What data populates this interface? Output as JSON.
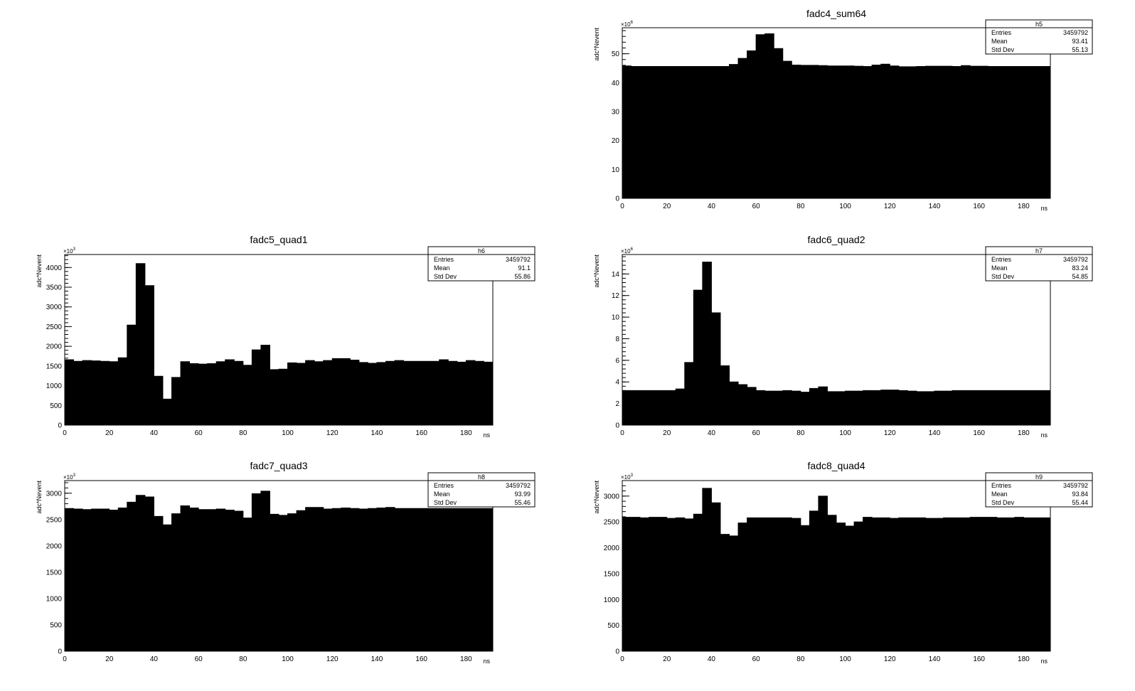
{
  "colors": {
    "fill": "#000000",
    "axis": "#000000",
    "background": "#ffffff"
  },
  "chart_data": [
    {
      "id": "h5",
      "type": "histogram",
      "title": "fadc4_sum64",
      "xlabel": "ns",
      "ylabel": "adc*Nevent",
      "exponent": "6",
      "xlim": [
        0,
        192
      ],
      "ylim": [
        0,
        59
      ],
      "xticks": [
        0,
        20,
        40,
        60,
        80,
        100,
        120,
        140,
        160,
        180
      ],
      "yticks": [
        0,
        10,
        20,
        30,
        40,
        50
      ],
      "bin_width": 4,
      "values": [
        45.8,
        45.6,
        45.6,
        45.6,
        45.6,
        45.6,
        45.6,
        45.6,
        45.6,
        45.6,
        45.6,
        45.6,
        46.3,
        48.4,
        51.0,
        56.6,
        56.9,
        51.8,
        47.4,
        46.1,
        46.0,
        46.0,
        45.9,
        45.8,
        45.8,
        45.8,
        45.7,
        45.6,
        46.1,
        46.4,
        45.8,
        45.5,
        45.5,
        45.6,
        45.7,
        45.7,
        45.7,
        45.6,
        45.9,
        45.7,
        45.7,
        45.6,
        45.6,
        45.6,
        45.6,
        45.6,
        45.6,
        45.6
      ],
      "stats": {
        "name": "h5",
        "rows": [
          {
            "label": "Entries",
            "value": "3459792"
          },
          {
            "label": "Mean",
            "value": "93.41"
          },
          {
            "label": "Std Dev",
            "value": "55.13"
          }
        ]
      }
    },
    {
      "id": "h6",
      "type": "histogram",
      "title": "fadc5_quad1",
      "xlabel": "ns",
      "ylabel": "adc*Nevent",
      "exponent": "3",
      "xlim": [
        0,
        192
      ],
      "ylim": [
        0,
        4330
      ],
      "xticks": [
        0,
        20,
        40,
        60,
        80,
        100,
        120,
        140,
        160,
        180
      ],
      "yticks": [
        0,
        500,
        1000,
        1500,
        2000,
        2500,
        3000,
        3500,
        4000
      ],
      "bin_width": 4,
      "values": [
        1660,
        1620,
        1640,
        1630,
        1620,
        1610,
        1710,
        2540,
        4100,
        3540,
        1240,
        660,
        1210,
        1610,
        1560,
        1550,
        1560,
        1610,
        1660,
        1620,
        1520,
        1910,
        2030,
        1410,
        1420,
        1580,
        1570,
        1640,
        1610,
        1640,
        1690,
        1690,
        1650,
        1590,
        1570,
        1590,
        1620,
        1640,
        1620,
        1620,
        1620,
        1620,
        1660,
        1620,
        1600,
        1640,
        1620,
        1600
      ],
      "stats": {
        "name": "h6",
        "rows": [
          {
            "label": "Entries",
            "value": "3459792"
          },
          {
            "label": "Mean",
            "value": "91.1"
          },
          {
            "label": "Std Dev",
            "value": "55.86"
          }
        ]
      }
    },
    {
      "id": "h7",
      "type": "histogram",
      "title": "fadc6_quad2",
      "xlabel": "ns",
      "ylabel": "adc*Nevent",
      "exponent": "6",
      "xlim": [
        0,
        192
      ],
      "ylim": [
        0,
        15.8
      ],
      "xticks": [
        0,
        20,
        40,
        60,
        80,
        100,
        120,
        140,
        160,
        180
      ],
      "yticks": [
        0,
        2,
        4,
        6,
        8,
        10,
        12,
        14
      ],
      "bin_width": 4,
      "values": [
        3.2,
        3.2,
        3.2,
        3.2,
        3.2,
        3.2,
        3.35,
        5.8,
        12.5,
        15.1,
        10.4,
        5.5,
        4.0,
        3.75,
        3.5,
        3.2,
        3.15,
        3.15,
        3.2,
        3.15,
        3.05,
        3.4,
        3.55,
        3.1,
        3.1,
        3.15,
        3.15,
        3.2,
        3.2,
        3.25,
        3.25,
        3.2,
        3.15,
        3.1,
        3.1,
        3.15,
        3.15,
        3.2,
        3.2,
        3.2,
        3.2,
        3.2,
        3.2,
        3.2,
        3.2,
        3.2,
        3.2,
        3.2
      ],
      "stats": {
        "name": "h7",
        "rows": [
          {
            "label": "Entries",
            "value": "3459792"
          },
          {
            "label": "Mean",
            "value": "83.24"
          },
          {
            "label": "Std Dev",
            "value": "54.85"
          }
        ]
      }
    },
    {
      "id": "h8",
      "type": "histogram",
      "title": "fadc7_quad3",
      "xlabel": "ns",
      "ylabel": "adc*Nevent",
      "exponent": "3",
      "xlim": [
        0,
        192
      ],
      "ylim": [
        0,
        3240
      ],
      "xticks": [
        0,
        20,
        40,
        60,
        80,
        100,
        120,
        140,
        160,
        180
      ],
      "yticks": [
        0,
        500,
        1000,
        1500,
        2000,
        2500,
        3000
      ],
      "bin_width": 4,
      "values": [
        2710,
        2700,
        2690,
        2700,
        2700,
        2680,
        2720,
        2830,
        2960,
        2930,
        2560,
        2400,
        2610,
        2760,
        2720,
        2690,
        2690,
        2700,
        2680,
        2660,
        2530,
        2990,
        3040,
        2600,
        2580,
        2610,
        2670,
        2730,
        2730,
        2700,
        2710,
        2720,
        2710,
        2700,
        2710,
        2720,
        2730,
        2710,
        2710,
        2710,
        2710,
        2710,
        2710,
        2710,
        2710,
        2710,
        2710,
        2710
      ],
      "stats": {
        "name": "h8",
        "rows": [
          {
            "label": "Entries",
            "value": "3459792"
          },
          {
            "label": "Mean",
            "value": "93.99"
          },
          {
            "label": "Std Dev",
            "value": "55.46"
          }
        ]
      }
    },
    {
      "id": "h9",
      "type": "histogram",
      "title": "fadc8_quad4",
      "xlabel": "ns",
      "ylabel": "adc*Nevent",
      "exponent": "3",
      "xlim": [
        0,
        192
      ],
      "ylim": [
        0,
        3300
      ],
      "xticks": [
        0,
        20,
        40,
        60,
        80,
        100,
        120,
        140,
        160,
        180
      ],
      "yticks": [
        0,
        500,
        1000,
        1500,
        2000,
        2500,
        3000
      ],
      "bin_width": 4,
      "values": [
        2590,
        2590,
        2580,
        2590,
        2590,
        2570,
        2580,
        2560,
        2650,
        3150,
        2870,
        2260,
        2230,
        2480,
        2580,
        2580,
        2580,
        2580,
        2580,
        2570,
        2430,
        2710,
        3000,
        2630,
        2480,
        2420,
        2500,
        2590,
        2580,
        2580,
        2570,
        2580,
        2580,
        2580,
        2570,
        2570,
        2580,
        2580,
        2580,
        2590,
        2590,
        2590,
        2580,
        2580,
        2590,
        2580,
        2580,
        2580
      ],
      "stats": {
        "name": "h9",
        "rows": [
          {
            "label": "Entries",
            "value": "3459792"
          },
          {
            "label": "Mean",
            "value": "93.84"
          },
          {
            "label": "Std Dev",
            "value": "55.44"
          }
        ]
      }
    }
  ]
}
